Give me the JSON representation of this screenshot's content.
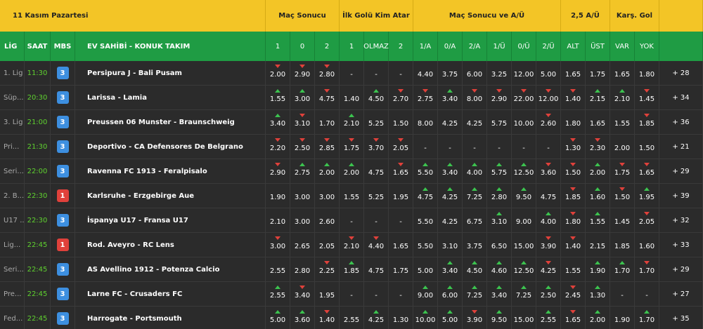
{
  "header": {
    "date": "11 Kasım Pazartesi",
    "groups": [
      "Maç Sonucu",
      "İlk Golü Kim Atar",
      "Maç Sonucu ve A/Ü",
      "2,5 A/Ü",
      "Karş. Gol"
    ],
    "columns": [
      "LİG",
      "SAAT",
      "MBS",
      "EV SAHİBİ - KONUK TAKIM"
    ],
    "odds_columns": [
      "1",
      "0",
      "2",
      "1",
      "OLMAZ",
      "2",
      "1/A",
      "0/A",
      "2/A",
      "1/Ü",
      "0/Ü",
      "2/Ü",
      "ALT",
      "ÜST",
      "VAR",
      "YOK"
    ]
  },
  "rows": [
    {
      "league": "1. Lig",
      "time": "11:30",
      "mbs": "3",
      "match": "Persipura J - Bali Pusam",
      "odds": [
        "2.00",
        "2.90",
        "2.80",
        "-",
        "-",
        "-",
        "4.40",
        "3.75",
        "6.00",
        "3.25",
        "12.00",
        "5.00",
        "1.65",
        "1.75",
        "1.65",
        "1.80"
      ],
      "trend": "ddd.............",
      "more": "+ 28"
    },
    {
      "league": "Süp...",
      "time": "20:30",
      "mbs": "3",
      "match": "Larissa - Lamia",
      "odds": [
        "1.55",
        "3.00",
        "4.75",
        "1.40",
        "4.50",
        "2.70",
        "2.75",
        "3.40",
        "8.00",
        "2.90",
        "22.00",
        "12.00",
        "1.40",
        "2.15",
        "2.10",
        "1.45"
      ],
      "trend": "uud.udduddddduud",
      "more": "+ 34"
    },
    {
      "league": "3. Lig",
      "time": "21:00",
      "mbs": "3",
      "match": "Preussen 06 Munster - Braunschweig",
      "odds": [
        "3.40",
        "3.10",
        "1.70",
        "2.10",
        "5.25",
        "1.50",
        "8.00",
        "4.25",
        "4.25",
        "5.75",
        "10.00",
        "2.60",
        "1.80",
        "1.65",
        "1.55",
        "1.85"
      ],
      "trend": "ud.u.......d...d",
      "more": "+ 36"
    },
    {
      "league": "Pri...",
      "time": "21:30",
      "mbs": "3",
      "match": "Deportivo - CA Defensores De Belgrano",
      "odds": [
        "2.20",
        "2.50",
        "2.85",
        "1.75",
        "3.70",
        "2.05",
        "-",
        "-",
        "-",
        "-",
        "-",
        "-",
        "1.30",
        "2.30",
        "2.00",
        "1.50"
      ],
      "trend": "dddddd......dd..",
      "more": "+ 21"
    },
    {
      "league": "Seri...",
      "time": "22:00",
      "mbs": "3",
      "match": "Ravenna FC 1913 - Feralpisalo",
      "odds": [
        "2.90",
        "2.75",
        "2.00",
        "2.00",
        "4.75",
        "1.65",
        "5.50",
        "3.40",
        "4.00",
        "5.75",
        "12.50",
        "3.60",
        "1.50",
        "2.00",
        "1.75",
        "1.65"
      ],
      "trend": "duuu.duuuuuddudd",
      "more": "+ 29"
    },
    {
      "league": "2. B...",
      "time": "22:30",
      "mbs": "1",
      "match": "Karlsruhe - Erzgebirge Aue",
      "odds": [
        "1.90",
        "3.00",
        "3.00",
        "1.55",
        "5.25",
        "1.95",
        "4.75",
        "4.25",
        "7.25",
        "2.80",
        "9.50",
        "4.75",
        "1.85",
        "1.60",
        "1.50",
        "1.95"
      ],
      "trend": "......uuuuu.dudu",
      "more": "+ 39"
    },
    {
      "league": "U17 ...",
      "time": "22:30",
      "mbs": "3",
      "match": "İspanya U17 - Fransa U17",
      "odds": [
        "2.10",
        "3.00",
        "2.60",
        "-",
        "-",
        "-",
        "5.50",
        "4.25",
        "6.75",
        "3.10",
        "9.00",
        "4.00",
        "1.80",
        "1.55",
        "1.45",
        "2.05"
      ],
      "trend": ".........u.udu.d",
      "more": "+ 32"
    },
    {
      "league": "Lig...",
      "time": "22:45",
      "mbs": "1",
      "match": "Rod. Aveyro - RC Lens",
      "odds": [
        "3.00",
        "2.65",
        "2.05",
        "2.10",
        "4.40",
        "1.65",
        "5.50",
        "3.10",
        "3.75",
        "6.50",
        "15.00",
        "3.90",
        "1.40",
        "2.15",
        "1.85",
        "1.60"
      ],
      "trend": "d..dd......dd...",
      "more": "+ 33"
    },
    {
      "league": "Seri...",
      "time": "22:45",
      "mbs": "3",
      "match": "AS Avellino 1912 - Potenza Calcio",
      "odds": [
        "2.55",
        "2.80",
        "2.25",
        "1.85",
        "4.75",
        "1.75",
        "5.00",
        "3.40",
        "4.50",
        "4.60",
        "12.50",
        "4.25",
        "1.55",
        "1.90",
        "1.70",
        "1.70"
      ],
      "trend": "..du...uuuud.uud",
      "more": "+ 29"
    },
    {
      "league": "Pre...",
      "time": "22:45",
      "mbs": "3",
      "match": "Larne FC - Crusaders FC",
      "odds": [
        "2.55",
        "3.40",
        "1.95",
        "-",
        "-",
        "-",
        "9.00",
        "6.00",
        "7.25",
        "3.40",
        "7.25",
        "2.50",
        "2.45",
        "1.30",
        "-",
        "-"
      ],
      "trend": "ud....uuuuuudu..",
      "more": "+ 27"
    },
    {
      "league": "Fed...",
      "time": "22:45",
      "mbs": "3",
      "match": "Harrogate - Portsmouth",
      "odds": [
        "5.00",
        "3.60",
        "1.40",
        "2.55",
        "4.25",
        "1.30",
        "10.00",
        "5.00",
        "3.90",
        "9.50",
        "15.00",
        "2.55",
        "1.65",
        "2.00",
        "1.90",
        "1.70"
      ],
      "trend": "uud.u.uudu.udu.u",
      "more": "+ 35"
    }
  ]
}
